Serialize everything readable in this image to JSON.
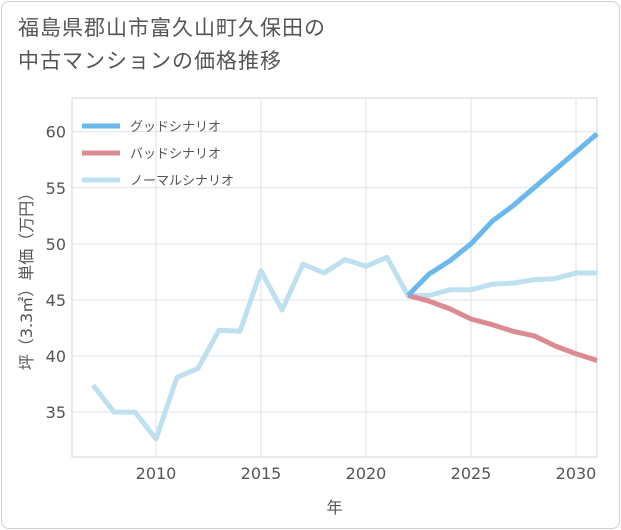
{
  "title": {
    "line1": "福島県郡山市富久山町久保田の",
    "line2": "中古マンションの価格推移"
  },
  "colors": {
    "good": "#6bb8ec",
    "bad": "#dc8a93",
    "normal": "#bfe0ef",
    "grid": "#dde3ea",
    "plot_border": "#cfd6dd"
  },
  "chart_data": {
    "type": "line",
    "title": "福島県郡山市富久山町久保田の中古マンションの価格推移",
    "xlabel": "年",
    "ylabel": "坪（3.3㎡）単価（万円）",
    "xlim": [
      2006,
      2031
    ],
    "ylim": [
      31,
      63
    ],
    "x_ticks": [
      2010,
      2015,
      2020,
      2025,
      2030
    ],
    "y_ticks": [
      35,
      40,
      45,
      50,
      55,
      60
    ],
    "grid": true,
    "legend_position": "top-left",
    "series": [
      {
        "name": "グッドシナリオ",
        "color": "#6bb8ec",
        "x": [
          2022,
          2023,
          2024,
          2025,
          2026,
          2027,
          2028,
          2029,
          2030,
          2031
        ],
        "y": [
          45.4,
          47.3,
          48.5,
          50.0,
          52.0,
          53.4,
          55.0,
          56.6,
          58.2,
          59.8
        ]
      },
      {
        "name": "バッドシナリオ",
        "color": "#dc8a93",
        "x": [
          2022,
          2023,
          2024,
          2025,
          2026,
          2027,
          2028,
          2029,
          2030,
          2031
        ],
        "y": [
          45.4,
          44.9,
          44.2,
          43.3,
          42.8,
          42.2,
          41.8,
          40.9,
          40.2,
          39.6
        ]
      },
      {
        "name": "ノーマルシナリオ",
        "color": "#bfe0ef",
        "x": [
          2007,
          2008,
          2009,
          2010,
          2011,
          2012,
          2013,
          2014,
          2015,
          2016,
          2017,
          2018,
          2019,
          2020,
          2021,
          2022,
          2023,
          2024,
          2025,
          2026,
          2027,
          2028,
          2029,
          2030,
          2031
        ],
        "y": [
          37.4,
          35.0,
          35.0,
          32.6,
          38.1,
          38.9,
          42.3,
          42.2,
          47.6,
          44.1,
          48.2,
          47.4,
          48.6,
          48.0,
          48.8,
          45.4,
          45.4,
          45.9,
          45.9,
          46.4,
          46.5,
          46.8,
          46.9,
          47.4,
          47.4
        ]
      }
    ]
  }
}
